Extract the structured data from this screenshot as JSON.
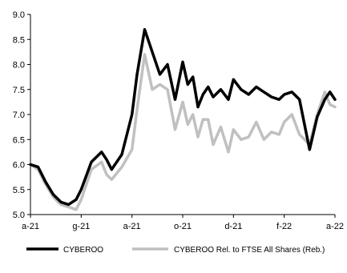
{
  "chart_data": {
    "type": "line",
    "title": "",
    "xlabel": "",
    "ylabel": "",
    "ylim": [
      5.0,
      9.0
    ],
    "yticks": [
      "5.0",
      "5.5",
      "6.0",
      "6.5",
      "7.0",
      "7.5",
      "8.0",
      "8.5",
      "9.0"
    ],
    "xticks": [
      "a-21",
      "g-21",
      "a-21",
      "o-21",
      "d-21",
      "f-22",
      "a-22"
    ],
    "grid": false,
    "legend_position": "bottom",
    "series": [
      {
        "name": "CYBEROO",
        "color": "#000000",
        "x": [
          0.0,
          0.15,
          0.3,
          0.45,
          0.6,
          0.75,
          0.9,
          1.0,
          1.2,
          1.4,
          1.5,
          1.6,
          1.8,
          2.0,
          2.1,
          2.25,
          2.4,
          2.55,
          2.7,
          2.85,
          3.0,
          3.1,
          3.2,
          3.3,
          3.4,
          3.5,
          3.6,
          3.75,
          3.9,
          4.0,
          4.15,
          4.3,
          4.45,
          4.6,
          4.75,
          4.9,
          5.0,
          5.15,
          5.3,
          5.5,
          5.65,
          5.8,
          5.9,
          6.0
        ],
        "values": [
          6.0,
          5.95,
          5.65,
          5.4,
          5.25,
          5.2,
          5.3,
          5.5,
          6.05,
          6.25,
          6.1,
          5.9,
          6.2,
          7.0,
          7.8,
          8.7,
          8.25,
          7.8,
          8.0,
          7.3,
          8.05,
          7.6,
          7.75,
          7.15,
          7.4,
          7.55,
          7.35,
          7.5,
          7.3,
          7.7,
          7.5,
          7.4,
          7.55,
          7.45,
          7.35,
          7.3,
          7.4,
          7.45,
          7.3,
          6.3,
          6.95,
          7.3,
          7.45,
          7.3
        ]
      },
      {
        "name": "CYBEROO Rel. to FTSE All Shares (Reb.)",
        "color": "#c0c0c0",
        "x": [
          0.0,
          0.15,
          0.3,
          0.45,
          0.6,
          0.75,
          0.9,
          1.0,
          1.2,
          1.4,
          1.5,
          1.6,
          1.8,
          2.0,
          2.1,
          2.25,
          2.4,
          2.55,
          2.7,
          2.85,
          3.0,
          3.1,
          3.2,
          3.3,
          3.4,
          3.5,
          3.6,
          3.75,
          3.9,
          4.0,
          4.15,
          4.3,
          4.45,
          4.6,
          4.75,
          4.9,
          5.0,
          5.15,
          5.3,
          5.5,
          5.65,
          5.8,
          5.9,
          6.0
        ],
        "values": [
          6.0,
          5.9,
          5.6,
          5.35,
          5.2,
          5.15,
          5.1,
          5.3,
          5.9,
          6.05,
          5.8,
          5.7,
          5.95,
          6.3,
          7.1,
          8.2,
          7.5,
          7.6,
          7.5,
          6.7,
          7.25,
          6.8,
          7.0,
          6.55,
          6.9,
          6.9,
          6.4,
          6.75,
          6.25,
          6.7,
          6.5,
          6.55,
          6.85,
          6.5,
          6.65,
          6.6,
          6.85,
          7.0,
          6.6,
          6.4,
          7.0,
          7.45,
          7.2,
          7.15
        ]
      }
    ]
  }
}
